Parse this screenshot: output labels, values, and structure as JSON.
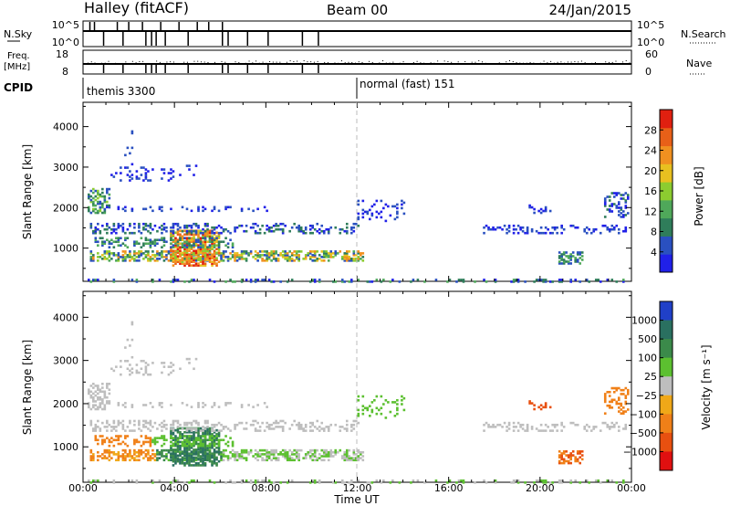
{
  "header": {
    "title": "Halley (fitACF)",
    "beam": "Beam 00",
    "date": "24/Jan/2015"
  },
  "top_panels": {
    "nsky_label": "N.Sky",
    "nsky_ticks": [
      "10^5",
      "10^0"
    ],
    "nsearch_label": "N.Search",
    "nsearch_ticks": [
      "10^5",
      "10^0"
    ],
    "freq_label": "Freq.",
    "freq_unit": "[MHz]",
    "freq_ticks": [
      "18",
      "8"
    ],
    "nave_label": "Nave",
    "nave_ticks": [
      "60",
      "0"
    ],
    "cpid_label": "CPID",
    "cpid_segments": [
      {
        "label": "themis 3300",
        "start_hour": 0
      },
      {
        "label": "normal (fast) 151",
        "start_hour": 12
      }
    ]
  },
  "chart_data": [
    {
      "type": "heatmap",
      "panel": "power",
      "ylabel": "Slant Range [km]",
      "yticks": [
        1000,
        2000,
        3000,
        4000
      ],
      "ylim": [
        180,
        4600
      ],
      "xlim": [
        0,
        24
      ],
      "colorbar_label": "Power [dB]",
      "colorbar_ticks": [
        "4",
        "8",
        "12",
        "16",
        "20",
        "24",
        "28"
      ],
      "colorbar_colors": [
        "#2020e8",
        "#2a50c0",
        "#2f7d5a",
        "#4fa85a",
        "#8ccc30",
        "#e8c020",
        "#f09020",
        "#e86018",
        "#e02010"
      ],
      "features": [
        {
          "desc_hours": [
            0.2,
            12.2
          ],
          "range_km": [
            700,
            1000
          ],
          "level": "mid-high"
        },
        {
          "desc_hours": [
            3.8,
            5.8
          ],
          "range_km": [
            600,
            1500
          ],
          "level": "high"
        },
        {
          "desc_hours": [
            0.2,
            11.8
          ],
          "range_km": [
            1300,
            1700
          ],
          "level": "low"
        },
        {
          "desc_hours": [
            21.0,
            22.0
          ],
          "range_km": [
            700,
            950
          ],
          "level": "mid"
        }
      ]
    },
    {
      "type": "heatmap",
      "panel": "velocity",
      "ylabel": "Slant Range [km]",
      "yticks": [
        1000,
        2000,
        3000,
        4000
      ],
      "ylim": [
        180,
        4600
      ],
      "xlim": [
        0,
        24
      ],
      "colorbar_label": "Velocity [m s⁻¹]",
      "colorbar_ticks": [
        "1000",
        "500",
        "100",
        "25",
        "−25",
        "−100",
        "−500",
        "−1000"
      ],
      "colorbar_colors": [
        "#2040c8",
        "#2a7060",
        "#3b8a4a",
        "#5cc030",
        "#bebebe",
        "#f0a818",
        "#f08018",
        "#e85010",
        "#e01010"
      ]
    }
  ],
  "xaxis": {
    "label": "Time UT",
    "ticks": [
      "00:00",
      "04:00",
      "08:00",
      "12:00",
      "16:00",
      "20:00",
      "00:00"
    ]
  }
}
